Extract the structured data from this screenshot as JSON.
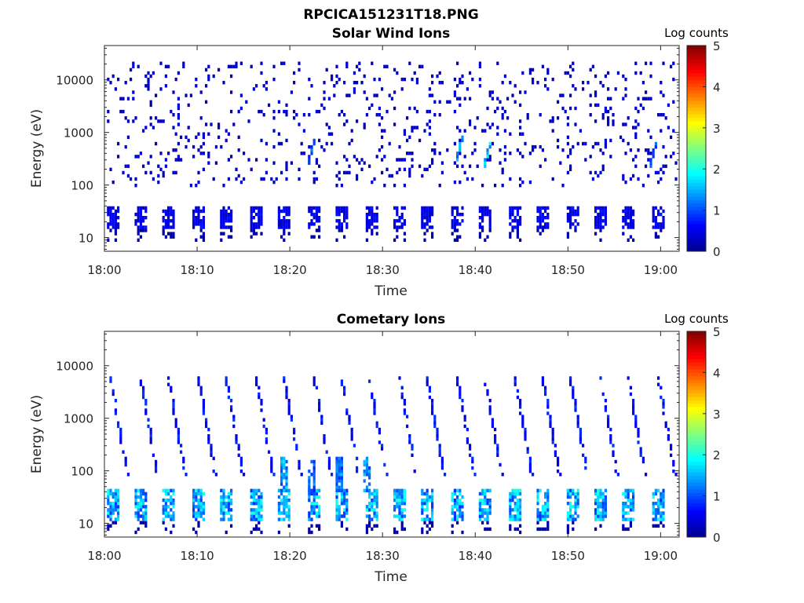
{
  "figure": {
    "title": "RPCICA151231T18.PNG"
  },
  "colormap": {
    "name": "jet",
    "stops": [
      "#00008f",
      "#0000ff",
      "#0080ff",
      "#00ffff",
      "#80ff80",
      "#ffff00",
      "#ff8000",
      "#ff0000",
      "#800000"
    ]
  },
  "chart_data": [
    {
      "type": "heatmap",
      "title": "Solar Wind Ions",
      "xlabel": "Time",
      "ylabel": "Energy (eV)",
      "x_range": [
        "18:00",
        "19:02"
      ],
      "y_scale": "log",
      "y_range": [
        5.5,
        45000
      ],
      "x_ticks": [
        "18:00",
        "18:10",
        "18:20",
        "18:30",
        "18:40",
        "18:50",
        "19:00"
      ],
      "y_ticks": [
        "10",
        "100",
        "1000",
        "10000"
      ],
      "colorbar": {
        "label": "Log counts",
        "range": [
          0,
          5
        ],
        "ticks": [
          "0",
          "1",
          "2",
          "3",
          "4",
          "5"
        ]
      },
      "data_description": {
        "scatter_band": {
          "energy_eV": [
            100,
            20000
          ],
          "log_counts": 0.2,
          "density": 0.08
        },
        "low_energy_bursts": {
          "energy_eV": [
            15,
            35
          ],
          "log_counts": 0.6,
          "period_minutes": 3.1
        },
        "hotspots": [
          {
            "time": "18:41",
            "energy_eV": 300,
            "log_counts": 1.8
          },
          {
            "time": "18:38",
            "energy_eV": 400,
            "log_counts": 1.5
          },
          {
            "time": "18:22",
            "energy_eV": 350,
            "log_counts": 1.2
          },
          {
            "time": "18:59",
            "energy_eV": 300,
            "log_counts": 1.1
          }
        ]
      }
    },
    {
      "type": "heatmap",
      "title": "Cometary Ions",
      "xlabel": "Time",
      "ylabel": "Energy (eV)",
      "x_range": [
        "18:00",
        "19:02"
      ],
      "y_scale": "log",
      "y_range": [
        5.5,
        45000
      ],
      "x_ticks": [
        "18:00",
        "18:10",
        "18:20",
        "18:30",
        "18:40",
        "18:50",
        "19:00"
      ],
      "y_ticks": [
        "10",
        "100",
        "1000",
        "10000"
      ],
      "colorbar": {
        "label": "Log counts",
        "range": [
          0,
          5
        ],
        "ticks": [
          "0",
          "1",
          "2",
          "3",
          "4",
          "5"
        ]
      },
      "data_description": {
        "low_energy_bursts": {
          "energy_eV": [
            12,
            40
          ],
          "log_counts": 1.7,
          "period_minutes": 3.1
        },
        "dispersion_streaks": {
          "energy_eV_start": 6000,
          "energy_eV_end": 80,
          "log_counts": 0.4
        },
        "enhanced_streaks": [
          {
            "time": "18:19",
            "energy_eV": [
              40,
              180
            ],
            "log_counts": 1.5
          },
          {
            "time": "18:22",
            "energy_eV": [
              40,
              150
            ],
            "log_counts": 1.2
          },
          {
            "time": "18:25",
            "energy_eV": [
              40,
              180
            ],
            "log_counts": 1.3
          },
          {
            "time": "18:28",
            "energy_eV": [
              40,
              180
            ],
            "log_counts": 1.4
          }
        ]
      }
    }
  ]
}
